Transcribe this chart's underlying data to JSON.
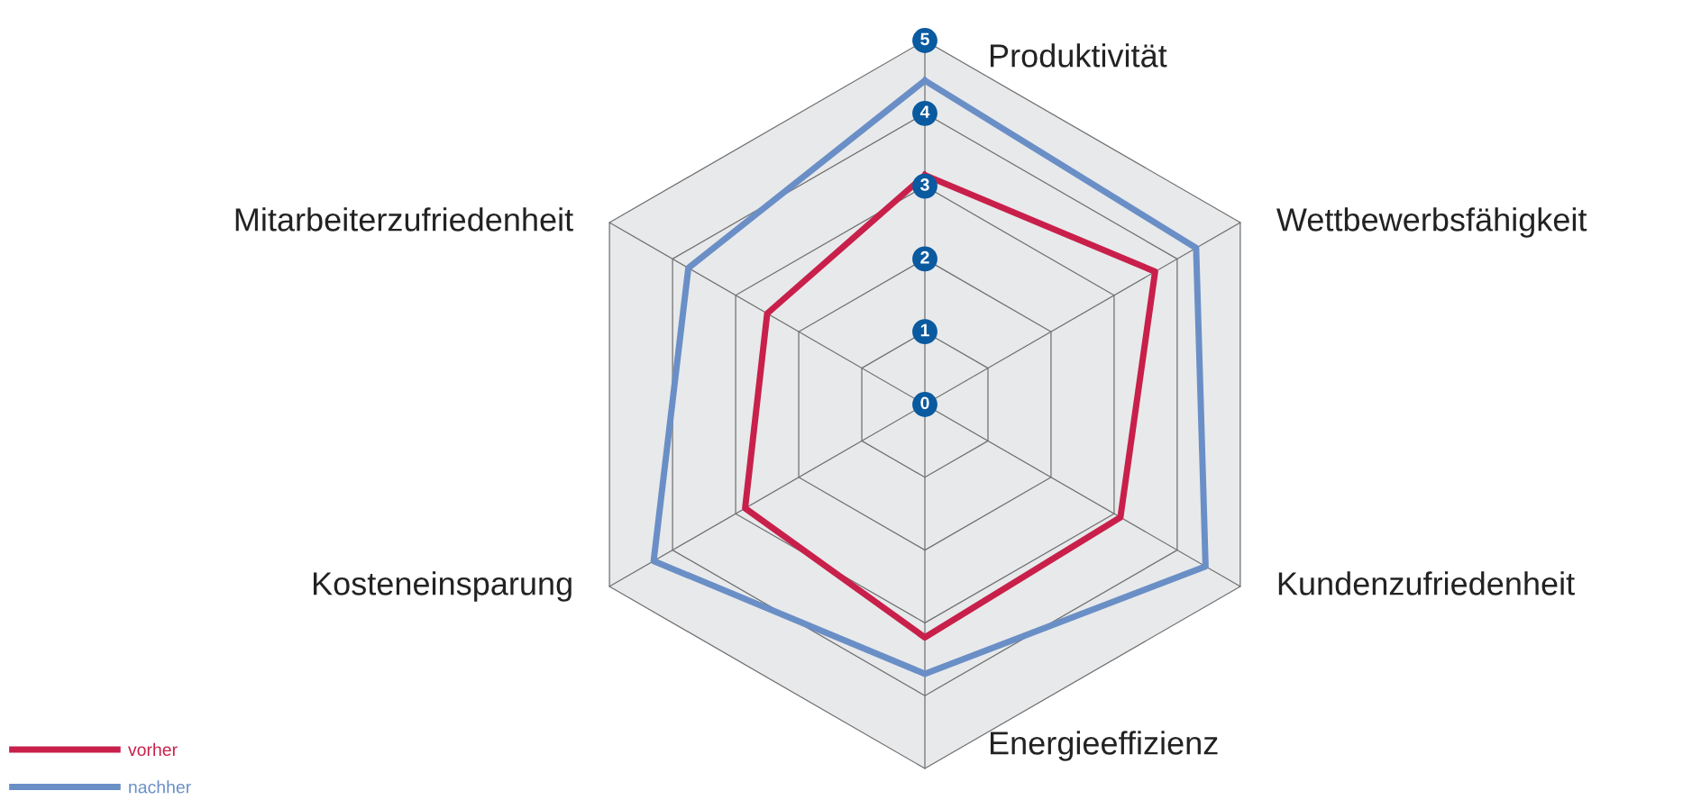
{
  "chart_data": {
    "type": "radar",
    "categories": [
      "Produktivität",
      "Wettbewerbsfähigkeit",
      "Kundenzufriedenheit",
      "Energieeffizienz",
      "Kosteneinsparung",
      "Mitarbeiterzufriedenheit"
    ],
    "series": [
      {
        "name": "vorher",
        "color": "#c8204a",
        "values": [
          3.15,
          3.65,
          3.1,
          3.2,
          2.85,
          2.5
        ]
      },
      {
        "name": "nachher",
        "color": "#6a8fc6",
        "values": [
          4.45,
          4.3,
          4.45,
          3.7,
          4.3,
          3.75
        ]
      }
    ],
    "ylim": [
      0,
      5
    ],
    "yticks": [
      0,
      1,
      2,
      3,
      4,
      5
    ],
    "grid": true,
    "legend": "bottom left"
  }
}
